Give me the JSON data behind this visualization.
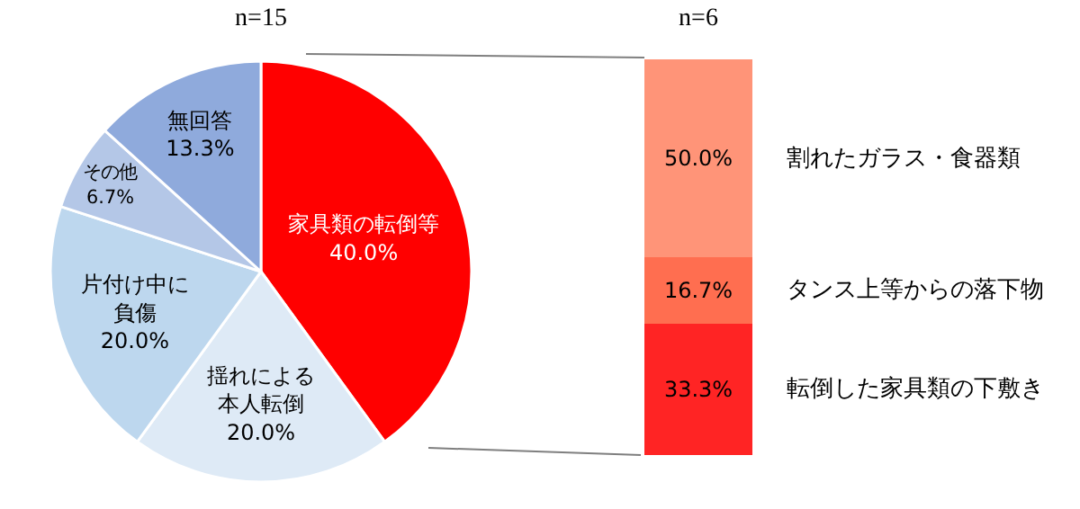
{
  "chart_data": [
    {
      "type": "pie",
      "title": "n=15",
      "categories": [
        "家具類の転倒等",
        "揺れによる本人転倒",
        "片付け中に負傷",
        "その他",
        "無回答"
      ],
      "values": [
        40.0,
        20.0,
        20.0,
        6.7,
        13.3
      ],
      "value_labels": [
        "40.0%",
        "20.0%",
        "20.0%",
        "6.7%",
        "13.3%"
      ],
      "colors": [
        "#ff0000",
        "#deeaf6",
        "#bdd7ee",
        "#b4c7e7",
        "#8faadc"
      ],
      "legend": false
    },
    {
      "type": "bar",
      "title": "n=6",
      "stacked": true,
      "categories": [
        null
      ],
      "legend": false,
      "series": [
        {
          "name": "転倒した家具類の下敷き",
          "color": "#ff2424",
          "values": [
            33.3
          ],
          "value_labels": [
            "33.3%"
          ]
        },
        {
          "name": "タンス上等からの落下物",
          "color": "#ff6e50",
          "values": [
            16.7
          ],
          "value_labels": [
            "16.7%"
          ]
        },
        {
          "name": "割れたガラス・食器類",
          "color": "#ff9478",
          "values": [
            50.0
          ],
          "value_labels": [
            "50.0%"
          ]
        }
      ]
    }
  ]
}
